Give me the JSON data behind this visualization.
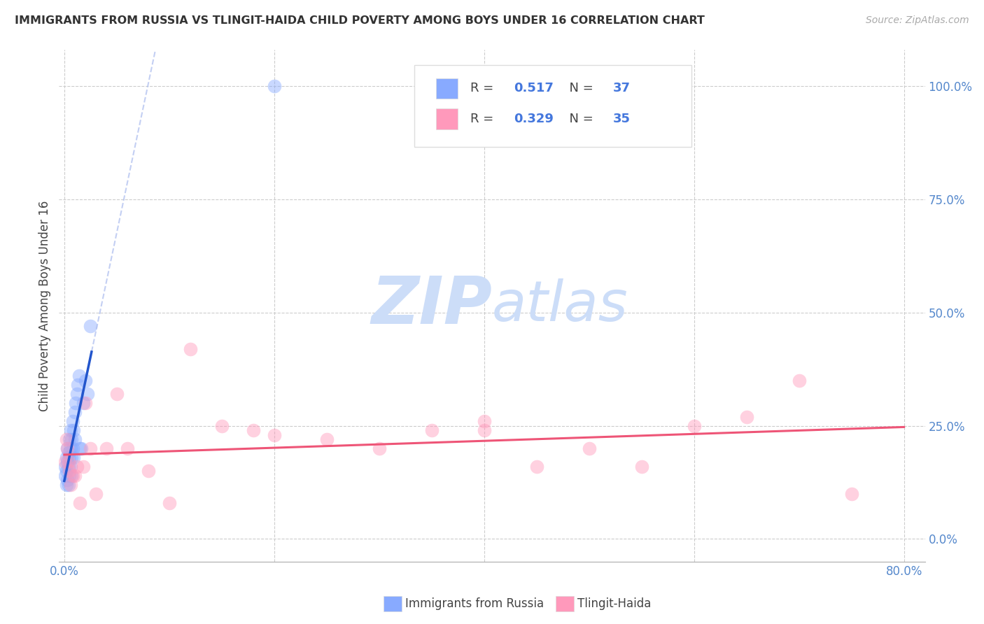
{
  "title": "IMMIGRANTS FROM RUSSIA VS TLINGIT-HAIDA CHILD POVERTY AMONG BOYS UNDER 16 CORRELATION CHART",
  "source": "Source: ZipAtlas.com",
  "ylabel": "Child Poverty Among Boys Under 16",
  "ytick_labels": [
    "0.0%",
    "25.0%",
    "50.0%",
    "75.0%",
    "100.0%"
  ],
  "ytick_values": [
    0.0,
    0.25,
    0.5,
    0.75,
    1.0
  ],
  "xlim": [
    -0.005,
    0.82
  ],
  "ylim": [
    -0.05,
    1.08
  ],
  "r_blue": 0.517,
  "n_blue": 37,
  "r_pink": 0.329,
  "n_pink": 35,
  "legend_label_blue": "Immigrants from Russia",
  "legend_label_pink": "Tlingit-Haida",
  "blue_color": "#88AAFF",
  "pink_color": "#FF99BB",
  "trendline_blue": "#2255CC",
  "trendline_pink": "#EE5577",
  "blue_scatter_x": [
    0.001,
    0.001,
    0.002,
    0.002,
    0.002,
    0.003,
    0.003,
    0.003,
    0.004,
    0.004,
    0.004,
    0.005,
    0.005,
    0.005,
    0.006,
    0.006,
    0.006,
    0.007,
    0.007,
    0.007,
    0.008,
    0.008,
    0.009,
    0.009,
    0.01,
    0.01,
    0.011,
    0.012,
    0.013,
    0.014,
    0.015,
    0.016,
    0.018,
    0.02,
    0.022,
    0.025,
    0.2
  ],
  "blue_scatter_y": [
    0.16,
    0.14,
    0.18,
    0.15,
    0.12,
    0.2,
    0.17,
    0.13,
    0.19,
    0.16,
    0.12,
    0.22,
    0.18,
    0.14,
    0.24,
    0.2,
    0.16,
    0.22,
    0.18,
    0.14,
    0.26,
    0.2,
    0.24,
    0.18,
    0.28,
    0.22,
    0.3,
    0.32,
    0.34,
    0.36,
    0.2,
    0.2,
    0.3,
    0.35,
    0.32,
    0.47,
    1.0
  ],
  "pink_scatter_x": [
    0.001,
    0.002,
    0.003,
    0.004,
    0.005,
    0.006,
    0.008,
    0.01,
    0.012,
    0.015,
    0.018,
    0.02,
    0.025,
    0.03,
    0.04,
    0.05,
    0.06,
    0.08,
    0.1,
    0.12,
    0.15,
    0.18,
    0.2,
    0.25,
    0.3,
    0.35,
    0.4,
    0.45,
    0.5,
    0.55,
    0.6,
    0.65,
    0.7,
    0.75,
    0.4
  ],
  "pink_scatter_y": [
    0.17,
    0.22,
    0.2,
    0.17,
    0.15,
    0.12,
    0.14,
    0.14,
    0.16,
    0.08,
    0.16,
    0.3,
    0.2,
    0.1,
    0.2,
    0.32,
    0.2,
    0.15,
    0.08,
    0.42,
    0.25,
    0.24,
    0.23,
    0.22,
    0.2,
    0.24,
    0.26,
    0.16,
    0.2,
    0.16,
    0.25,
    0.27,
    0.35,
    0.1,
    0.24
  ],
  "watermark_zip": "ZIP",
  "watermark_atlas": "atlas",
  "watermark_color": "#CCDDF8",
  "background_color": "#FFFFFF",
  "grid_color": "#CCCCCC"
}
